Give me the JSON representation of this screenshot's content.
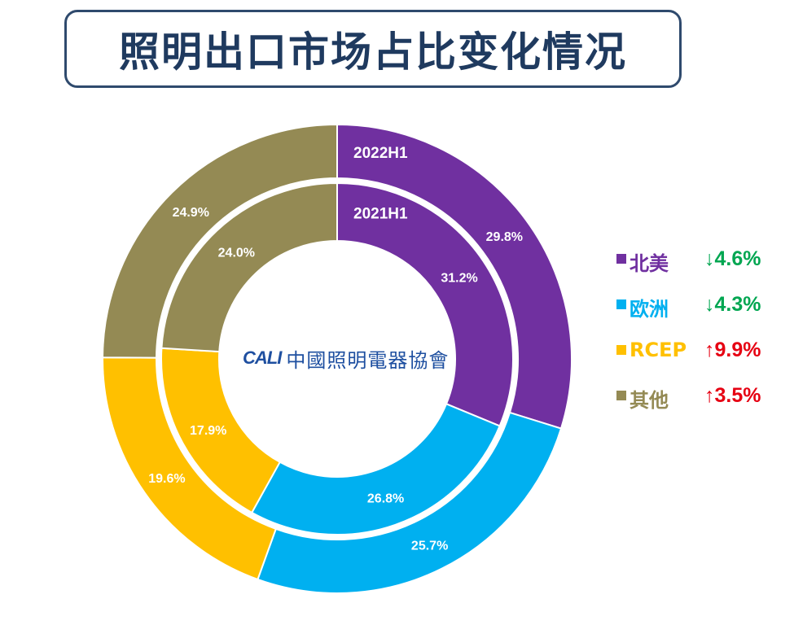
{
  "title": "照明出口市场占比变化情况",
  "logo": {
    "mark": "CALI",
    "text": "中國照明電器協會"
  },
  "colors": {
    "north_america": "#7030a0",
    "europe": "#00b0f0",
    "rcep": "#ffc000",
    "other": "#948a54",
    "down": "#00a651",
    "up": "#e60012",
    "title": "#1f3a5f"
  },
  "chart_data": {
    "type": "donut",
    "title": "照明出口市场占比变化情况",
    "rings": [
      {
        "name": "2022H1",
        "position": "outer",
        "values": [
          29.8,
          25.7,
          19.6,
          24.9
        ],
        "labels": [
          "29.8%",
          "25.7%",
          "19.6%",
          "24.9%"
        ]
      },
      {
        "name": "2021H1",
        "position": "inner",
        "values": [
          31.2,
          26.8,
          17.9,
          24.0
        ],
        "labels": [
          "31.2%",
          "26.8%",
          "17.9%",
          "24.0%"
        ]
      }
    ],
    "categories": [
      "北美",
      "欧洲",
      "RCEP",
      "其他"
    ],
    "legend": [
      {
        "label": "北美",
        "change": "↓4.6%",
        "direction": "down"
      },
      {
        "label": "欧洲",
        "change": "↓4.3%",
        "direction": "down"
      },
      {
        "label": "RCEP",
        "change": "↑9.9%",
        "direction": "up"
      },
      {
        "label": "其他",
        "change": "↑3.5%",
        "direction": "up"
      }
    ],
    "legend_position": "right"
  }
}
